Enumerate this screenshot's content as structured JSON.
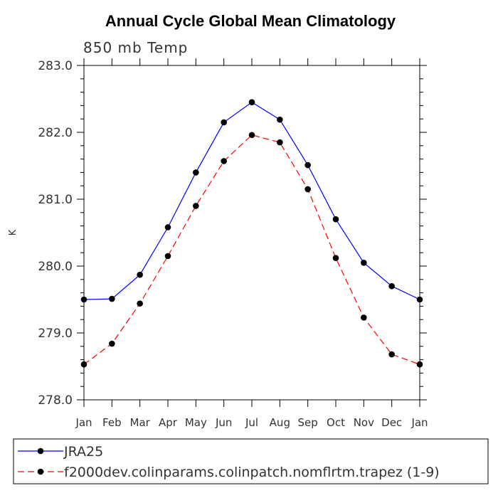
{
  "chart_data": {
    "type": "line",
    "title": "Annual Cycle Global Mean Climatology",
    "subtitle": "850 mb Temp",
    "xlabel": "",
    "ylabel": "K",
    "categories": [
      "Jan",
      "Feb",
      "Mar",
      "Apr",
      "May",
      "Jun",
      "Jul",
      "Aug",
      "Sep",
      "Oct",
      "Nov",
      "Dec",
      "Jan"
    ],
    "ylim": [
      278.0,
      283.0
    ],
    "yticks": [
      "278.0",
      "279.0",
      "280.0",
      "281.0",
      "282.0",
      "283.0"
    ],
    "grid": false,
    "legend_position": "bottom",
    "series": [
      {
        "name": "JRA25",
        "color": "#0000ff",
        "line_style": "solid",
        "marker": "filled-circle",
        "values": [
          279.5,
          279.51,
          279.87,
          280.58,
          281.4,
          282.15,
          282.45,
          282.19,
          281.51,
          280.7,
          280.05,
          279.7,
          279.5
        ]
      },
      {
        "name": "f2000dev.colinparams.colinpatch.nomflrtm.trapez (1-9)",
        "color": "#ff0000",
        "line_style": "dashed",
        "marker": "filled-circle",
        "values": [
          278.53,
          278.84,
          279.44,
          280.15,
          280.9,
          281.57,
          281.96,
          281.85,
          281.15,
          280.12,
          279.23,
          278.68,
          278.53
        ]
      }
    ]
  }
}
